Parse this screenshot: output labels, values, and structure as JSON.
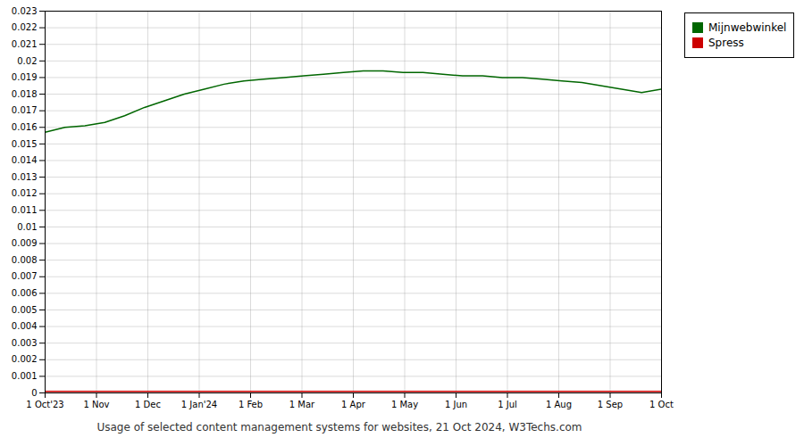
{
  "chart_data": {
    "type": "line",
    "title": "Usage of selected content management systems for websites, 21 Oct 2024, W3Techs.com",
    "x": [
      0,
      0.3870967741935484,
      0.7741935483870968,
      1.1612903225806452,
      1.5483870967741935,
      1.935483870967742,
      2.3225806451612905,
      2.7096774193548385,
      3.096774193548387,
      3.4838709677419355,
      3.870967741935484,
      4.258064516129032,
      4.645161290322581,
      5.032258064516129,
      5.419354838709677,
      5.806451612903226,
      6.193548387096774,
      6.580645161290323,
      6.967741935483871,
      7.354838709677419,
      7.741935483870968,
      8.129032258064516,
      8.516129032258064,
      8.903225806451612,
      9.290322580645162,
      9.67741935483871,
      10.064516129032258,
      10.451612903225806,
      10.838709677419354,
      11.225806451612904,
      11.612903225806452,
      12
    ],
    "series": [
      {
        "name": "Mijnwebwinkel",
        "color": "#006600",
        "values": [
          0.0157,
          0.016,
          0.0161,
          0.0163,
          0.0167,
          0.0172,
          0.0176,
          0.018,
          0.0183,
          0.0186,
          0.0188,
          0.0189,
          0.019,
          0.0191,
          0.0192,
          0.0193,
          0.0194,
          0.0194,
          0.0193,
          0.0193,
          0.0192,
          0.0191,
          0.0191,
          0.019,
          0.019,
          0.0189,
          0.0188,
          0.0187,
          0.0185,
          0.0183,
          0.0181,
          0.0183
        ]
      },
      {
        "name": "Spress",
        "color": "#cc0000",
        "values": [
          0.0001,
          0.0001,
          0.0001,
          0.0001,
          0.0001,
          0.0001,
          0.0001,
          0.0001,
          0.0001,
          0.0001,
          0.0001,
          0.0001,
          0.0001,
          0.0001,
          0.0001,
          0.0001,
          0.0001,
          0.0001,
          0.0001,
          0.0001,
          0.0001,
          0.0001,
          0.0001,
          0.0001,
          0.0001,
          0.0001,
          0.0001,
          0.0001,
          0.0001,
          0.0001,
          0.0001,
          0.0001
        ]
      }
    ],
    "xlim": [
      0,
      12
    ],
    "xticks": [
      {
        "value": 0,
        "label": "1 Oct'23"
      },
      {
        "value": 1,
        "label": "1 Nov"
      },
      {
        "value": 2,
        "label": "1 Dec"
      },
      {
        "value": 3,
        "label": "1 Jan'24"
      },
      {
        "value": 4,
        "label": "1 Feb"
      },
      {
        "value": 5,
        "label": "1 Mar"
      },
      {
        "value": 6,
        "label": "1 Apr"
      },
      {
        "value": 7,
        "label": "1 May"
      },
      {
        "value": 8,
        "label": "1 Jun"
      },
      {
        "value": 9,
        "label": "1 Jul"
      },
      {
        "value": 10,
        "label": "1 Aug"
      },
      {
        "value": 11,
        "label": "1 Sep"
      },
      {
        "value": 12,
        "label": "1 Oct"
      }
    ],
    "ylim": [
      0,
      0.023
    ],
    "yticks": [
      0,
      0.001,
      0.002,
      0.003,
      0.004,
      0.005,
      0.006,
      0.007,
      0.008,
      0.009,
      0.01,
      0.011,
      0.012,
      0.013,
      0.014,
      0.015,
      0.016,
      0.017,
      0.018,
      0.019,
      0.02,
      0.021,
      0.022,
      0.023
    ],
    "grid": true,
    "legend": "upper right"
  }
}
